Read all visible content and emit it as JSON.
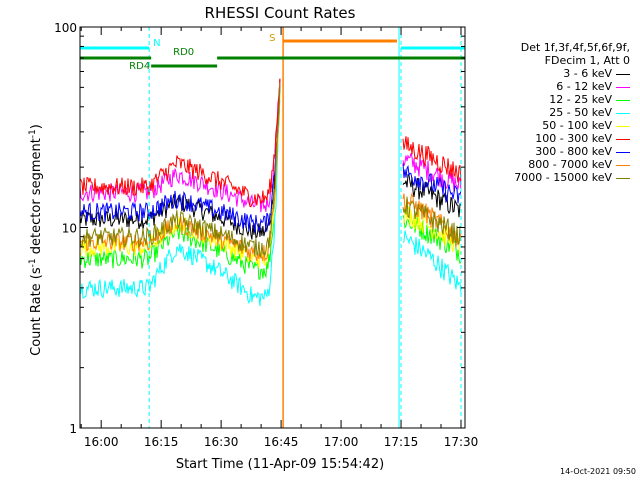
{
  "chart_data": {
    "type": "line",
    "title": "RHESSI Count Rates",
    "xlabel": "Start Time (11-Apr-09 15:54:42)",
    "ylabel_main": "Count Rate (s",
    "ylabel_sup": "-1",
    "ylabel_tail": " detector segment",
    "ylabel_sup2": "-1",
    "ylabel_end": ")",
    "yscale": "log",
    "ylim": [
      1,
      100
    ],
    "xlim_minutes": [
      -5.3,
      91.0
    ],
    "x_ticks": [
      "16:00",
      "16:15",
      "16:30",
      "16:45",
      "17:00",
      "17:15",
      "17:30"
    ],
    "x_tick_minutes": [
      0,
      15,
      30,
      45,
      60,
      75,
      90
    ],
    "y_ticks": [
      "1",
      "10",
      "100"
    ],
    "y_tick_values": [
      1,
      10,
      100
    ],
    "legend_header": [
      "Det 1f,3f,4f,5f,6f,9f,",
      "FDecim 1, Att 0"
    ],
    "series": [
      {
        "name": "3 - 6 keV",
        "color": "#000000",
        "pre": [
          11.0,
          13.5,
          9.5,
          60
        ],
        "post": [
          17.0,
          12.0
        ]
      },
      {
        "name": "6 - 12 keV",
        "color": "#ff00ff",
        "pre": [
          15.0,
          18.5,
          13.0,
          62
        ],
        "post": [
          22.0,
          16.0
        ]
      },
      {
        "name": "12 - 25 keV",
        "color": "#00ff00",
        "pre": [
          7.0,
          9.5,
          6.2,
          55
        ],
        "post": [
          11.0,
          7.5
        ]
      },
      {
        "name": "25 - 50 keV",
        "color": "#00ffff",
        "pre": [
          5.0,
          8.0,
          4.5,
          50
        ],
        "post": [
          9.0,
          5.0
        ]
      },
      {
        "name": "50 - 100 keV",
        "color": "#ffff00",
        "pre": [
          8.0,
          10.5,
          7.0,
          55
        ],
        "post": [
          12.0,
          8.0
        ]
      },
      {
        "name": "100 - 300 keV",
        "color": "#ff0000",
        "pre": [
          16.0,
          21.0,
          14.0,
          65
        ],
        "post": [
          26.0,
          18.5
        ]
      },
      {
        "name": "300 - 800 keV",
        "color": "#0000ff",
        "pre": [
          12.0,
          14.0,
          10.5,
          58
        ],
        "post": [
          19.0,
          14.0
        ]
      },
      {
        "name": "800 - 7000 keV",
        "color": "#ff8000",
        "pre": [
          8.5,
          10.5,
          7.5,
          56
        ],
        "post": [
          14.0,
          8.5
        ]
      },
      {
        "name": "7000 - 15000 keV",
        "color": "#808000",
        "pre": [
          9.0,
          11.0,
          8.0,
          57
        ],
        "post": [
          13.0,
          9.0
        ]
      }
    ],
    "annotations": {
      "night_label": "N",
      "saa_label": "S",
      "rd0_label": "RD0",
      "rd4_label": "RD4",
      "night_intervals_minutes": [
        [
          -5.3,
          12.0
        ],
        [
          75.0,
          91.0
        ]
      ],
      "saa_interval_minutes": [
        45.5,
        74.0
      ],
      "rd0_segments_minutes": [
        [
          -5.3,
          12.5
        ],
        [
          29.0,
          91.0
        ]
      ],
      "rd4_segment_minutes": [
        12.5,
        29.0
      ],
      "vlines_cyan_minutes": [
        12.0,
        75.0,
        90.0
      ],
      "vline_orange_minutes": 45.5,
      "data_gap_minutes": [
        45.5,
        74.5
      ]
    },
    "colors": {
      "night": "#00ffff",
      "saa": "#ff8000",
      "rd": "#008000",
      "axis": "#000000"
    }
  },
  "footer": {
    "timestamp": "14-Oct-2021 09:50"
  }
}
